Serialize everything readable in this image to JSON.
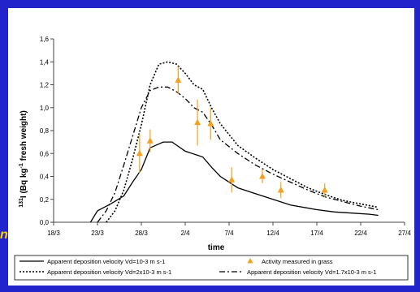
{
  "chart_data": {
    "type": "line",
    "title": "",
    "xlabel": "time",
    "ylabel_base": "I (Bq kg",
    "ylabel_sup_pre": "131",
    "ylabel_sup_exp": "-1",
    "ylabel_tail": " fresh weight)",
    "x_ticks": [
      "18/3",
      "23/3",
      "28/3",
      "2/4",
      "7/4",
      "12/4",
      "17/4",
      "22/4",
      "27/4"
    ],
    "y_ticks": [
      "0,0",
      "0,2",
      "0,4",
      "0,6",
      "0,8",
      "1,0",
      "1,2",
      "1,4",
      "1,6"
    ],
    "xlim": [
      0,
      40
    ],
    "ylim": [
      0,
      1.6
    ],
    "x_unit_note": "days since 18/3",
    "series": [
      {
        "name": "Apparent deposition velocity Vd=10-3 m s-1",
        "style": "solid",
        "x": [
          4.2,
          5.0,
          6.5,
          8.0,
          9.0,
          10.0,
          11.0,
          12.5,
          13.5,
          15.0,
          17.0,
          18.0,
          19.0,
          21.0,
          23.0,
          25.0,
          27.0,
          30.0,
          32.0,
          34.0,
          36.0,
          37.0
        ],
        "values": [
          0.0,
          0.1,
          0.16,
          0.23,
          0.35,
          0.46,
          0.65,
          0.7,
          0.7,
          0.62,
          0.57,
          0.48,
          0.4,
          0.3,
          0.25,
          0.2,
          0.15,
          0.11,
          0.09,
          0.08,
          0.07,
          0.06
        ]
      },
      {
        "name": "Apparent deposition velocity Vd=2x10-3 m s-1",
        "style": "dotted",
        "x": [
          6.0,
          7.0,
          8.0,
          9.0,
          10.0,
          11.0,
          12.0,
          13.0,
          14.0,
          15.0,
          16.0,
          17.0,
          18.0,
          19.0,
          21.0,
          23.0,
          25.0,
          27.0,
          29.0,
          31.0,
          33.0,
          35.0,
          37.0
        ],
        "values": [
          0.0,
          0.1,
          0.28,
          0.55,
          0.85,
          1.2,
          1.38,
          1.4,
          1.38,
          1.3,
          1.2,
          1.16,
          1.0,
          0.86,
          0.67,
          0.56,
          0.46,
          0.38,
          0.3,
          0.24,
          0.19,
          0.16,
          0.13
        ]
      },
      {
        "name": "Apparent deposition velocity Vd=1.7x10-3 m s-1",
        "style": "dashdot",
        "x": [
          5.0,
          6.0,
          7.0,
          8.0,
          9.0,
          10.0,
          11.0,
          12.0,
          13.0,
          14.0,
          15.0,
          16.0,
          17.0,
          18.0,
          19.0,
          21.0,
          23.0,
          25.0,
          27.0,
          29.0,
          31.0,
          33.0,
          35.0,
          37.0
        ],
        "values": [
          0.0,
          0.1,
          0.26,
          0.5,
          0.75,
          1.0,
          1.15,
          1.18,
          1.18,
          1.14,
          1.08,
          1.0,
          0.96,
          0.85,
          0.72,
          0.6,
          0.5,
          0.42,
          0.35,
          0.28,
          0.22,
          0.18,
          0.14,
          0.11
        ]
      }
    ],
    "points": {
      "name": "Activity measured in grass",
      "x": [
        9.8,
        11.0,
        14.2,
        16.4,
        17.9,
        20.3,
        23.8,
        25.9,
        30.9
      ],
      "values": [
        0.6,
        0.71,
        1.24,
        0.87,
        0.86,
        0.37,
        0.4,
        0.28,
        0.28
      ],
      "err": [
        0.17,
        0.1,
        0.12,
        0.2,
        0.14,
        0.11,
        0.06,
        0.07,
        0.06
      ]
    },
    "grid": false,
    "legend_position": "bottom",
    "colors": {
      "frame": "#2323cc",
      "marker": "#f5a020",
      "line": "#000000",
      "axis": "#444444"
    }
  }
}
